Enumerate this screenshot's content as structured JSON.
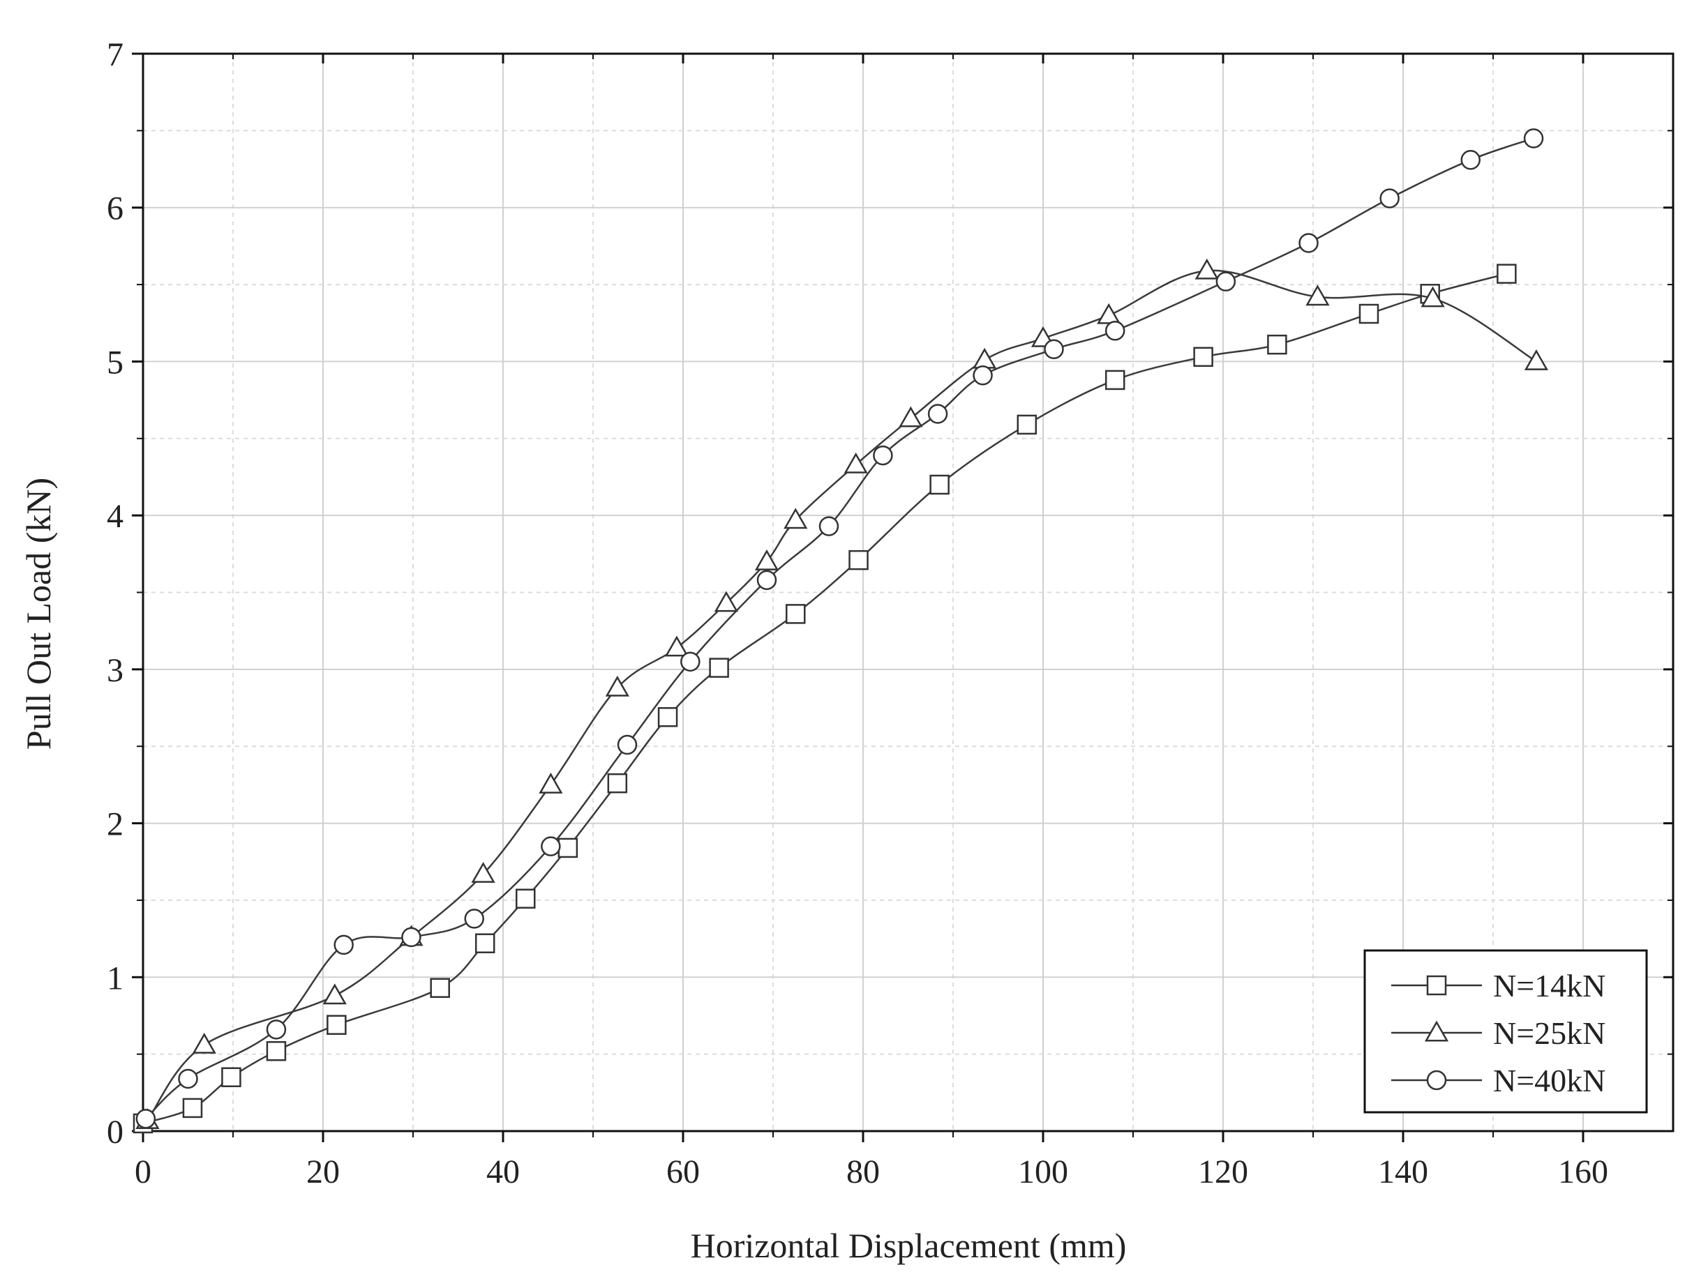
{
  "chart_data": {
    "type": "line",
    "title": "",
    "xlabel": "Horizontal Displacement (mm)",
    "ylabel": "Pull Out Load (kN)",
    "xlim": [
      0,
      170
    ],
    "ylim": [
      0,
      7
    ],
    "xticks": [
      0,
      20,
      40,
      60,
      80,
      100,
      120,
      140,
      160
    ],
    "yticks": [
      0,
      1,
      2,
      3,
      4,
      5,
      6,
      7
    ],
    "grid": true,
    "legend_position": "bottom-right",
    "series": [
      {
        "name": "N=14kN",
        "marker": "square",
        "x": [
          0,
          5.5,
          9.8,
          14.8,
          21.5,
          33,
          38,
          42.5,
          47.2,
          52.7,
          58.3,
          64,
          72.5,
          79.5,
          88.5,
          98.2,
          108,
          117.8,
          126,
          136.2,
          143,
          151.5
        ],
        "y": [
          0.05,
          0.15,
          0.35,
          0.52,
          0.69,
          0.93,
          1.22,
          1.51,
          1.84,
          2.26,
          2.69,
          3.01,
          3.36,
          3.71,
          4.2,
          4.59,
          4.88,
          5.03,
          5.11,
          5.31,
          5.44,
          5.57
        ]
      },
      {
        "name": "N=25kN",
        "marker": "triangle",
        "x": [
          0.5,
          6.8,
          21.3,
          29.8,
          37.8,
          45.3,
          52.7,
          59.3,
          64.8,
          69.3,
          72.5,
          79.2,
          85.3,
          93.5,
          100,
          107.3,
          118.2,
          130.5,
          143.3,
          154.8
        ],
        "y": [
          0.07,
          0.56,
          0.88,
          1.26,
          1.67,
          2.25,
          2.88,
          3.14,
          3.43,
          3.7,
          3.97,
          4.33,
          4.63,
          5.01,
          5.15,
          5.3,
          5.59,
          5.42,
          5.41,
          5.0
        ]
      },
      {
        "name": "N=40kN",
        "marker": "circle",
        "x": [
          0.3,
          5,
          14.8,
          22.3,
          29.8,
          36.8,
          45.3,
          53.8,
          60.8,
          69.3,
          76.2,
          82.2,
          88.3,
          93.3,
          101.2,
          108,
          120.3,
          129.5,
          138.5,
          147.5,
          154.5
        ],
        "y": [
          0.08,
          0.34,
          0.66,
          1.21,
          1.26,
          1.38,
          1.85,
          2.51,
          3.05,
          3.58,
          3.93,
          4.39,
          4.66,
          4.91,
          5.08,
          5.2,
          5.52,
          5.77,
          6.06,
          6.31,
          6.45
        ]
      }
    ]
  }
}
